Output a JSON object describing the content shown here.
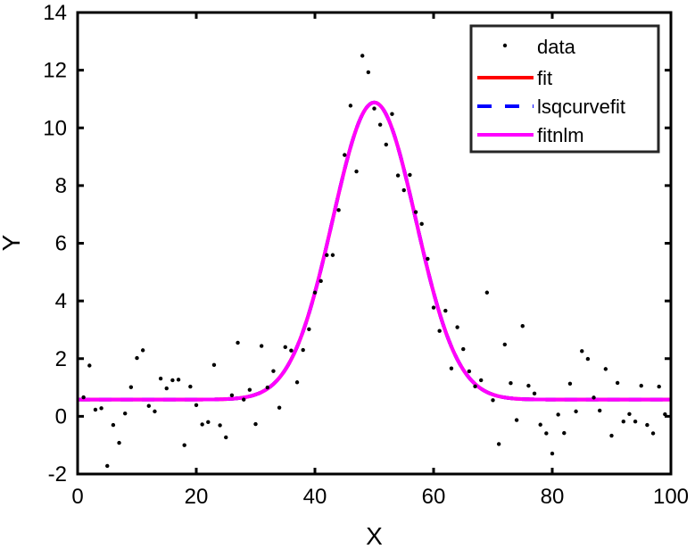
{
  "chart_data": {
    "type": "scatter",
    "title": "",
    "xlabel": "X",
    "ylabel": "Y",
    "xlim": [
      0,
      100
    ],
    "ylim": [
      -2,
      14
    ],
    "xticks": [
      0,
      20,
      40,
      60,
      80,
      100
    ],
    "yticks": [
      -2,
      0,
      2,
      4,
      6,
      8,
      10,
      12,
      14
    ],
    "grid": false,
    "legend_position": "northeast",
    "legend": [
      {
        "label": "data",
        "style": "dot",
        "color": "#000000"
      },
      {
        "label": "fit",
        "style": "solid",
        "color": "#ff0000"
      },
      {
        "label": "lsqcurvefit",
        "style": "dashed",
        "color": "#0000ff"
      },
      {
        "label": "fitnlm",
        "style": "solid",
        "color": "#ff00ff"
      }
    ],
    "series": [
      {
        "name": "data",
        "kind": "scatter",
        "color": "#000000",
        "x": [
          1,
          2,
          3,
          4,
          5,
          6,
          7,
          8,
          9,
          10,
          11,
          12,
          13,
          14,
          15,
          16,
          17,
          18,
          19,
          20,
          21,
          22,
          23,
          24,
          25,
          26,
          27,
          28,
          29,
          30,
          31,
          32,
          33,
          34,
          35,
          36,
          37,
          38,
          39,
          40,
          41,
          42,
          43,
          44,
          45,
          46,
          47,
          48,
          49,
          50,
          51,
          52,
          53,
          54,
          55,
          56,
          57,
          58,
          59,
          60,
          61,
          62,
          63,
          64,
          65,
          66,
          67,
          68,
          69,
          70,
          71,
          72,
          73,
          74,
          75,
          76,
          77,
          78,
          79,
          80,
          81,
          82,
          83,
          84,
          85,
          86,
          87,
          88,
          89,
          90,
          91,
          92,
          93,
          94,
          95,
          96,
          97,
          98,
          99
        ],
        "y": [
          0.66,
          1.76,
          0.23,
          0.28,
          -1.72,
          -0.3,
          -0.92,
          0.1,
          1.01,
          2.02,
          2.29,
          0.36,
          0.17,
          1.31,
          0.97,
          1.25,
          1.27,
          -1.0,
          1.03,
          0.39,
          -0.28,
          -0.2,
          1.78,
          -0.31,
          -0.73,
          0.73,
          2.55,
          0.58,
          0.92,
          -0.27,
          2.44,
          1.0,
          1.57,
          0.3,
          2.4,
          2.28,
          1.18,
          2.3,
          3.02,
          4.29,
          4.69,
          5.59,
          5.59,
          7.15,
          9.06,
          10.77,
          8.49,
          12.5,
          11.93,
          10.67,
          10.11,
          9.42,
          10.48,
          8.35,
          7.84,
          8.37,
          7.08,
          6.67,
          5.46,
          3.77,
          2.96,
          3.66,
          1.66,
          3.09,
          2.33,
          1.56,
          1.04,
          1.25,
          4.29,
          0.56,
          -0.96,
          2.49,
          1.15,
          -0.13,
          3.13,
          1.06,
          0.79,
          -0.29,
          -0.59,
          -1.29,
          0.06,
          -0.58,
          1.13,
          0.17,
          2.26,
          1.99,
          0.65,
          0.2,
          1.64,
          -0.67,
          1.16,
          -0.18,
          0.08,
          -0.18,
          1.06,
          -0.3,
          -0.59,
          1.03,
          0.07
        ]
      },
      {
        "name": "fit",
        "kind": "gaussian",
        "color": "#ff0000",
        "style": "solid",
        "params": {
          "offset": 0.58,
          "amplitude": 10.3,
          "center": 50,
          "sigma": 7.0
        }
      },
      {
        "name": "lsqcurvefit",
        "kind": "gaussian",
        "color": "#0000ff",
        "style": "dashed",
        "params": {
          "offset": 0.58,
          "amplitude": 10.3,
          "center": 50,
          "sigma": 7.0
        }
      },
      {
        "name": "fitnlm",
        "kind": "gaussian",
        "color": "#ff00ff",
        "style": "solid",
        "params": {
          "offset": 0.58,
          "amplitude": 10.3,
          "center": 50,
          "sigma": 7.0
        }
      }
    ]
  }
}
